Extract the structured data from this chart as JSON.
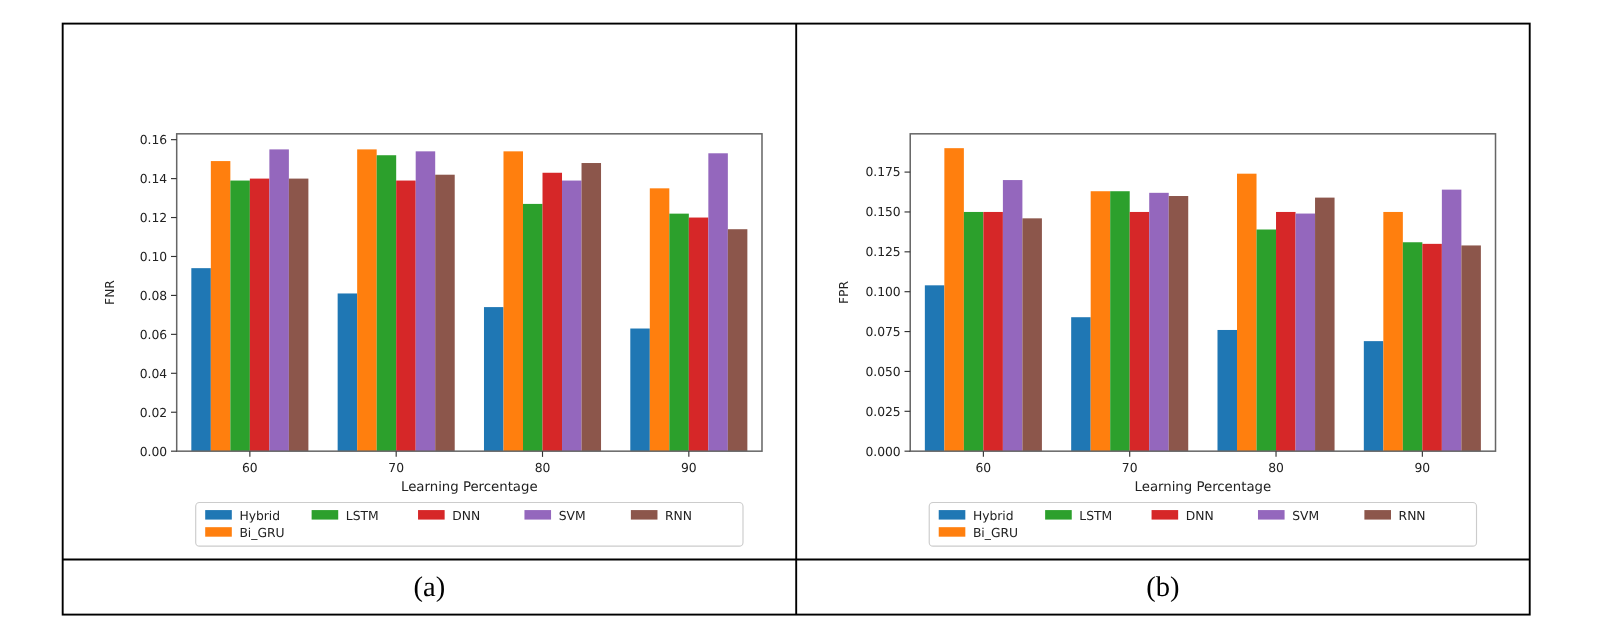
{
  "chart_data": [
    {
      "type": "bar",
      "xlabel": "Learning Percentage",
      "ylabel": "FNR",
      "categories": [
        "60",
        "70",
        "80",
        "90"
      ],
      "ylim": [
        0,
        0.163
      ],
      "yticks": [
        {
          "value": 0,
          "label": "0.00"
        },
        {
          "value": 0.02,
          "label": "0.02"
        },
        {
          "value": 0.04,
          "label": "0.04"
        },
        {
          "value": 0.06,
          "label": "0.06"
        },
        {
          "value": 0.08,
          "label": "0.08"
        },
        {
          "value": 0.1,
          "label": "0.10"
        },
        {
          "value": 0.12,
          "label": "0.12"
        },
        {
          "value": 0.14,
          "label": "0.14"
        },
        {
          "value": 0.16,
          "label": "0.16"
        }
      ],
      "legend": "bottom",
      "annotations": [
        "(a)"
      ],
      "series": [
        {
          "name": "Hybrid",
          "color": "#1f77b4",
          "values": [
            0.094,
            0.081,
            0.074,
            0.063
          ]
        },
        {
          "name": "Bi_GRU",
          "color": "#ff7f0e",
          "values": [
            0.149,
            0.155,
            0.154,
            0.135
          ]
        },
        {
          "name": "LSTM",
          "color": "#2ca02c",
          "values": [
            0.139,
            0.152,
            0.127,
            0.122
          ]
        },
        {
          "name": "DNN",
          "color": "#d62728",
          "values": [
            0.14,
            0.139,
            0.143,
            0.12
          ]
        },
        {
          "name": "SVM",
          "color": "#9467bd",
          "values": [
            0.155,
            0.154,
            0.139,
            0.153
          ]
        },
        {
          "name": "RNN",
          "color": "#8c564b",
          "values": [
            0.14,
            0.142,
            0.148,
            0.114
          ]
        }
      ]
    },
    {
      "type": "bar",
      "xlabel": "Learning Percentage",
      "ylabel": "FPR",
      "categories": [
        "60",
        "70",
        "80",
        "90"
      ],
      "ylim": [
        0,
        0.199
      ],
      "yticks": [
        {
          "value": 0,
          "label": "0.000"
        },
        {
          "value": 0.025,
          "label": "0.025"
        },
        {
          "value": 0.05,
          "label": "0.050"
        },
        {
          "value": 0.075,
          "label": "0.075"
        },
        {
          "value": 0.1,
          "label": "0.100"
        },
        {
          "value": 0.125,
          "label": "0.125"
        },
        {
          "value": 0.15,
          "label": "0.150"
        },
        {
          "value": 0.175,
          "label": "0.175"
        }
      ],
      "legend": "bottom",
      "annotations": [
        "(b)"
      ],
      "series": [
        {
          "name": "Hybrid",
          "color": "#1f77b4",
          "values": [
            0.104,
            0.084,
            0.076,
            0.069
          ]
        },
        {
          "name": "Bi_GRU",
          "color": "#ff7f0e",
          "values": [
            0.19,
            0.163,
            0.174,
            0.15
          ]
        },
        {
          "name": "LSTM",
          "color": "#2ca02c",
          "values": [
            0.15,
            0.163,
            0.139,
            0.131
          ]
        },
        {
          "name": "DNN",
          "color": "#d62728",
          "values": [
            0.15,
            0.15,
            0.15,
            0.13
          ]
        },
        {
          "name": "SVM",
          "color": "#9467bd",
          "values": [
            0.17,
            0.162,
            0.149,
            0.164
          ]
        },
        {
          "name": "RNN",
          "color": "#8c564b",
          "values": [
            0.146,
            0.16,
            0.159,
            0.129
          ]
        }
      ]
    }
  ]
}
